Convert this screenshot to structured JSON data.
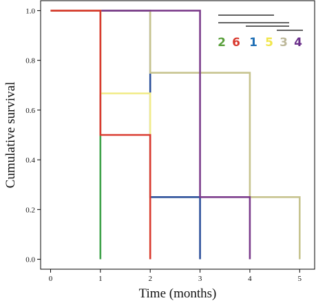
{
  "chart_data": {
    "type": "line",
    "title": "",
    "xlabel": "Time (months)",
    "ylabel": "Cumulative survival",
    "xlim": [
      -0.2,
      5.3
    ],
    "ylim": [
      -0.04,
      1.04
    ],
    "x_ticks": [
      "0",
      "1",
      "2",
      "3",
      "4",
      "5"
    ],
    "y_ticks": [
      "0.0",
      "0.2",
      "0.4",
      "0.6",
      "0.8",
      "1.0"
    ],
    "grid": false,
    "legend": {
      "placement": "top-right",
      "entries": [
        {
          "label": "2",
          "color": "#5aa03c"
        },
        {
          "label": "6",
          "color": "#d93a2f"
        },
        {
          "label": "1",
          "color": "#1f6fb5"
        },
        {
          "label": "5",
          "color": "#f1e64b"
        },
        {
          "label": "3",
          "color": "#bdb89a"
        },
        {
          "label": "4",
          "color": "#6a2f8a"
        }
      ]
    },
    "series": [
      {
        "name": "1",
        "color": "#2b4f9a",
        "steps": [
          [
            0,
            1.0
          ],
          [
            2,
            0.25
          ],
          [
            3,
            0.0
          ]
        ]
      },
      {
        "name": "2",
        "color": "#3fa24a",
        "steps": [
          [
            0,
            1.0
          ],
          [
            1,
            0.5
          ],
          [
            1,
            0.0
          ]
        ]
      },
      {
        "name": "3",
        "color": "#c6c38e",
        "steps": [
          [
            0,
            1.0
          ],
          [
            2,
            0.75
          ],
          [
            4,
            0.25
          ],
          [
            5,
            0.0
          ]
        ]
      },
      {
        "name": "4",
        "color": "#7b3b8b",
        "steps": [
          [
            0,
            1.0
          ],
          [
            3,
            0.25
          ],
          [
            4,
            0.0
          ]
        ]
      },
      {
        "name": "5",
        "color": "#f2ec8c",
        "steps": [
          [
            0,
            1.0
          ],
          [
            1,
            0.667
          ],
          [
            2,
            0.0
          ]
        ]
      },
      {
        "name": "6",
        "color": "#d93a2f",
        "steps": [
          [
            0,
            1.0
          ],
          [
            1,
            0.5
          ],
          [
            2,
            0.0
          ]
        ]
      }
    ]
  }
}
